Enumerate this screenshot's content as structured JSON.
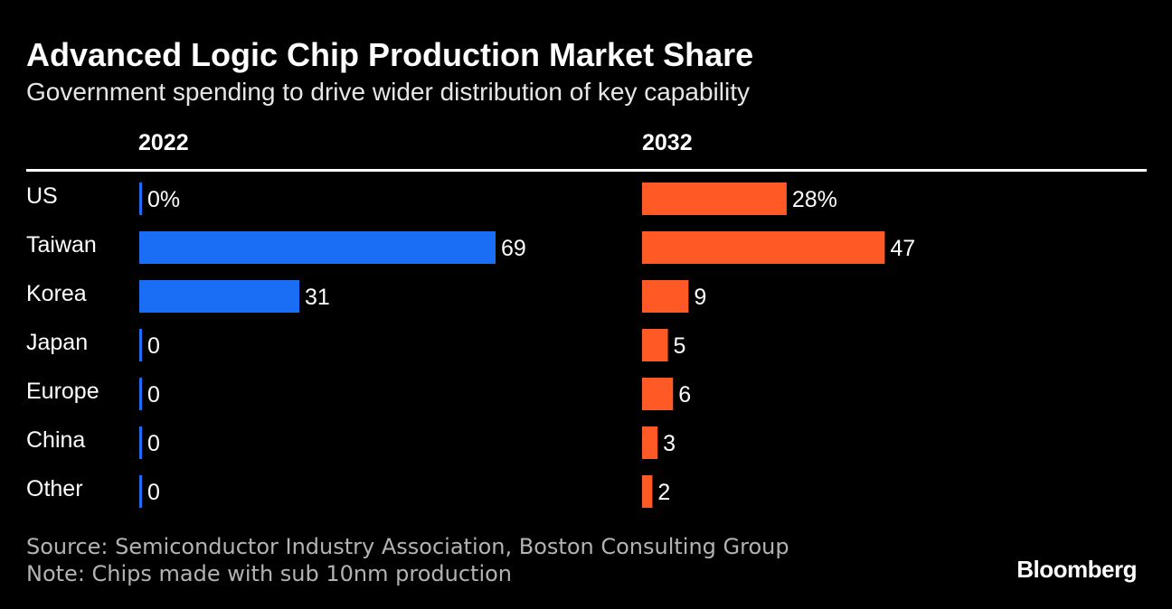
{
  "chart_data": {
    "type": "bar",
    "orientation": "horizontal",
    "title": "Advanced Logic Chip Production Market Share",
    "subtitle": "Government spending to drive wider distribution of key capability",
    "categories": [
      "US",
      "Taiwan",
      "Korea",
      "Japan",
      "Europe",
      "China",
      "Other"
    ],
    "series": [
      {
        "name": "2022",
        "values": [
          0,
          69,
          31,
          0,
          0,
          0,
          0
        ],
        "labels": [
          "0%",
          "69",
          "31",
          "0",
          "0",
          "0",
          "0"
        ],
        "color": "#1a6ef5"
      },
      {
        "name": "2032",
        "values": [
          28,
          47,
          9,
          5,
          6,
          3,
          2
        ],
        "labels": [
          "28%",
          "47",
          "9",
          "5",
          "6",
          "3",
          "2"
        ],
        "color": "#ff5a26"
      }
    ],
    "xlim": [
      0,
      69
    ],
    "unit": "%"
  },
  "footer": {
    "source": "Source: Semiconductor Industry Association, Boston Consulting Group",
    "note": "Note: Chips made with sub 10nm production",
    "brand": "Bloomberg"
  },
  "colors": {
    "background": "#000000",
    "text": "#ffffff",
    "muted": "#b3b3b3"
  }
}
